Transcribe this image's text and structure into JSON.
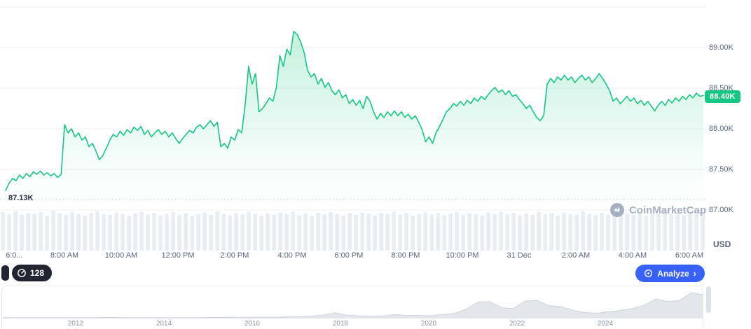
{
  "app_title": "CoinMarketCap price chart",
  "colors": {
    "accent_green": "#16c784",
    "accent_blue": "#3861fb",
    "grid": "#eff2f5",
    "axis_text": "#58667e",
    "volume_bar": "#e9ecf0",
    "watermark": "#a6b0c3",
    "dark_pill": "#222531",
    "mini_fill": "#e3e7ec",
    "mini_stroke": "#ccd2da",
    "dotted_line": "#c3cad6"
  },
  "y_axis": {
    "unit_label": "USD",
    "labels": [
      "89.00K",
      "88.50K",
      "88.00K",
      "87.50K",
      "87.00K"
    ],
    "values_k": [
      89.0,
      88.5,
      88.0,
      87.5,
      87.0
    ]
  },
  "x_axis": {
    "ticks": [
      {
        "label": "6:0...",
        "pos": 0.008,
        "align": "left"
      },
      {
        "label": "8:00 AM",
        "pos": 0.0913
      },
      {
        "label": "10:00 AM",
        "pos": 0.1716
      },
      {
        "label": "12:00 PM",
        "pos": 0.252
      },
      {
        "label": "2:00 PM",
        "pos": 0.3323
      },
      {
        "label": "4:00 PM",
        "pos": 0.4137
      },
      {
        "label": "6:00 PM",
        "pos": 0.494
      },
      {
        "label": "8:00 PM",
        "pos": 0.5744
      },
      {
        "label": "10:00 PM",
        "pos": 0.6548
      },
      {
        "label": "31 Dec",
        "pos": 0.7351
      },
      {
        "label": "2:00 AM",
        "pos": 0.8155
      },
      {
        "label": "4:00 AM",
        "pos": 0.8958
      },
      {
        "label": "6:00 AM",
        "pos": 0.9762
      }
    ]
  },
  "price_badge": {
    "text": "88.40K",
    "value_k": 88.4
  },
  "low_marker": {
    "text": "87.13K",
    "value_k": 87.13
  },
  "watermark": {
    "text": "CoinMarketCap"
  },
  "controls": {
    "gauge_badge": "128",
    "analyze_label": "Analyze",
    "analyze_chevron": "›"
  },
  "mini_chart_years": [
    "2012",
    "2014",
    "2016",
    "2018",
    "2020",
    "2022",
    "2024"
  ],
  "chart_data": [
    {
      "type": "area",
      "name": "intraday-price",
      "title": "Price (USD, thousands), 6:00 AM 30 Dec - 6:30 AM 31 Dec",
      "ylim_k": [
        87.0,
        89.59
      ],
      "grid_step_k": 0.5,
      "current_k": 88.4,
      "session_low_k": 87.13,
      "legend": "none",
      "grid": "on",
      "values_k": [
        87.24,
        87.33,
        87.39,
        87.36,
        87.43,
        87.39,
        87.45,
        87.41,
        87.47,
        87.44,
        87.48,
        87.43,
        87.46,
        87.42,
        87.45,
        87.4,
        87.44,
        88.05,
        87.95,
        88.0,
        87.9,
        87.95,
        87.86,
        87.9,
        87.78,
        87.82,
        87.73,
        87.62,
        87.67,
        87.76,
        87.86,
        87.93,
        87.9,
        87.97,
        87.92,
        87.99,
        87.95,
        88.02,
        87.98,
        88.03,
        87.93,
        87.98,
        87.9,
        87.95,
        87.99,
        87.93,
        87.97,
        87.9,
        87.95,
        87.88,
        87.82,
        87.88,
        87.93,
        87.98,
        87.95,
        88.02,
        88.05,
        88.0,
        88.05,
        88.1,
        88.03,
        88.08,
        87.78,
        87.82,
        87.76,
        87.9,
        87.86,
        87.99,
        87.95,
        88.29,
        88.77,
        88.55,
        88.68,
        88.21,
        88.25,
        88.31,
        88.38,
        88.34,
        88.51,
        88.9,
        88.77,
        88.98,
        88.91,
        89.2,
        89.16,
        89.07,
        88.94,
        88.72,
        88.64,
        88.68,
        88.55,
        88.62,
        88.51,
        88.57,
        88.47,
        88.42,
        88.48,
        88.38,
        88.42,
        88.31,
        88.36,
        88.29,
        88.35,
        88.25,
        88.4,
        88.34,
        88.21,
        88.12,
        88.19,
        88.14,
        88.21,
        88.16,
        88.22,
        88.16,
        88.21,
        88.14,
        88.18,
        88.12,
        88.16,
        88.08,
        87.99,
        87.84,
        87.9,
        87.82,
        87.95,
        88.03,
        88.12,
        88.21,
        88.25,
        88.31,
        88.28,
        88.34,
        88.29,
        88.35,
        88.31,
        88.38,
        88.34,
        88.4,
        88.36,
        88.42,
        88.47,
        88.51,
        88.45,
        88.48,
        88.42,
        88.47,
        88.4,
        88.42,
        88.36,
        88.31,
        88.25,
        88.29,
        88.21,
        88.14,
        88.1,
        88.16,
        88.55,
        88.62,
        88.57,
        88.64,
        88.6,
        88.66,
        88.6,
        88.64,
        88.57,
        88.62,
        88.66,
        88.6,
        88.64,
        88.57,
        88.62,
        88.68,
        88.62,
        88.55,
        88.47,
        88.34,
        88.38,
        88.31,
        88.35,
        88.4,
        88.34,
        88.38,
        88.31,
        88.35,
        88.29,
        88.34,
        88.28,
        88.22,
        88.29,
        88.34,
        88.29,
        88.36,
        88.32,
        88.38,
        88.34,
        88.4,
        88.36,
        88.42,
        88.38,
        88.44,
        88.4,
        88.41
      ]
    },
    {
      "type": "bar",
      "name": "volume",
      "values_norm": [
        0.95,
        0.9,
        0.97,
        0.88,
        0.93,
        0.9,
        0.95,
        0.85,
        0.98,
        0.92,
        0.88,
        0.95,
        0.9,
        0.85,
        0.93,
        0.97,
        0.9,
        0.88,
        0.94,
        0.9,
        0.86,
        0.92,
        0.96,
        0.89,
        0.93,
        0.87,
        0.91,
        0.95,
        0.88,
        0.92,
        0.85,
        0.9,
        0.94,
        0.88,
        0.96,
        0.9,
        0.87,
        0.93,
        0.89,
        0.95,
        0.91,
        0.86,
        0.92,
        0.88,
        0.94,
        0.9,
        0.96,
        0.87,
        0.91,
        0.85,
        0.93,
        0.89,
        0.95,
        0.9,
        0.86,
        0.92,
        0.88,
        0.94,
        0.91,
        0.87,
        0.93,
        0.9,
        0.96,
        0.88,
        0.92,
        0.86,
        0.9,
        0.94,
        0.89,
        0.93,
        0.87,
        0.91,
        0.95,
        0.88,
        0.92,
        0.9,
        0.86,
        0.94,
        0.9,
        0.96,
        0.89,
        0.93,
        0.87,
        0.91,
        0.88,
        0.95,
        0.9,
        0.92,
        0.86,
        0.94,
        0.9,
        0.88,
        0.96,
        0.91,
        0.87,
        0.93,
        0.89,
        0.95,
        0.9,
        0.92,
        0.88,
        0.94,
        0.86,
        0.92,
        0.9,
        0.96,
        0.89,
        0.91,
        0.87,
        0.93,
        0.9,
        0.95
      ]
    },
    {
      "type": "area",
      "name": "all-time-overview",
      "x_ticks_years": [
        2012,
        2014,
        2016,
        2018,
        2020,
        2022,
        2024
      ],
      "tick_pos": [
        0.104,
        0.23,
        0.356,
        0.482,
        0.608,
        0.734,
        0.86
      ],
      "values_norm": [
        0.005,
        0.005,
        0.004,
        0.004,
        0.005,
        0.004,
        0.005,
        0.006,
        0.01,
        0.012,
        0.01,
        0.007,
        0.005,
        0.004,
        0.005,
        0.006,
        0.008,
        0.01,
        0.012,
        0.015,
        0.018,
        0.02,
        0.022,
        0.025,
        0.03,
        0.04,
        0.06,
        0.1,
        0.18,
        0.09,
        0.07,
        0.05,
        0.06,
        0.12,
        0.08,
        0.09,
        0.07,
        0.12,
        0.15,
        0.3,
        0.56,
        0.58,
        0.36,
        0.33,
        0.6,
        0.62,
        0.43,
        0.4,
        0.27,
        0.19,
        0.16,
        0.22,
        0.26,
        0.33,
        0.44,
        0.67,
        0.58,
        0.62,
        0.9,
        0.82
      ]
    }
  ]
}
